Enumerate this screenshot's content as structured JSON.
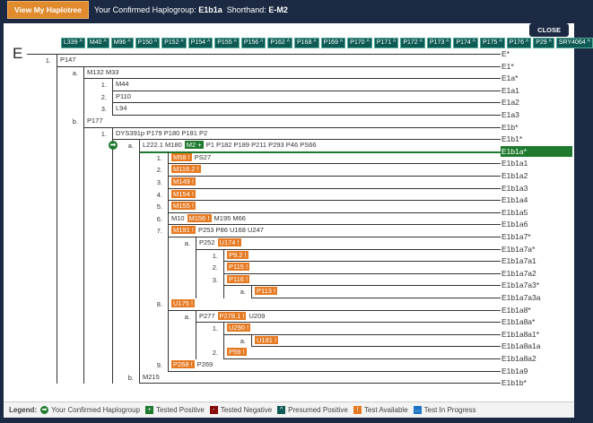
{
  "topbar": {
    "button": "View My Haplotree",
    "confirmed_prefix": "Your Confirmed Haplogroup:",
    "confirmed_value": "E1b1a",
    "shorthand_prefix": "Shorthand:",
    "shorthand_value": "E-M2"
  },
  "close": "CLOSE",
  "root": {
    "name": "E",
    "label": "E*",
    "markers": [
      "L339 ^",
      "M40 ^",
      "M96 ^",
      "P150 ^",
      "P152 ^",
      "P154 ^",
      "P155 ^",
      "P156 ^",
      "P162 ^",
      "P168 ^",
      "P169 ^",
      "P170 ^",
      "P171 ^",
      "P172 ^",
      "P173 ^",
      "P174 ^",
      "P175 ^",
      "P176 ^",
      "P29 ^",
      "SRY4064 ^"
    ]
  },
  "rows": [
    {
      "level": 0,
      "num": "1.",
      "label": "E1*",
      "markers": [
        {
          "t": "P147",
          "s": "plain"
        }
      ]
    },
    {
      "level": 1,
      "num": "a.",
      "label": "E1a*",
      "markers": [
        {
          "t": "M132 M33",
          "s": "plain"
        }
      ]
    },
    {
      "level": 2,
      "num": "1.",
      "label": "E1a1",
      "markers": [
        {
          "t": "M44",
          "s": "plain"
        }
      ]
    },
    {
      "level": 2,
      "num": "2.",
      "label": "E1a2",
      "markers": [
        {
          "t": "P110",
          "s": "plain"
        }
      ]
    },
    {
      "level": 2,
      "num": "3.",
      "label": "E1a3",
      "markers": [
        {
          "t": "L94",
          "s": "plain"
        }
      ]
    },
    {
      "level": 1,
      "num": "b.",
      "label": "E1b*",
      "markers": [
        {
          "t": "P177",
          "s": "plain"
        }
      ]
    },
    {
      "level": 2,
      "num": "1.",
      "label": "E1b1*",
      "markers": [
        {
          "t": "DYS391p P179 P180 P181 P2",
          "s": "plain"
        }
      ]
    },
    {
      "level": 3,
      "num": "a.",
      "label": "E1b1a*",
      "selected": true,
      "confirmed": true,
      "markers": [
        {
          "t": "L222.1 M180",
          "s": "plain"
        },
        {
          "t": "M2 +",
          "s": "pos"
        },
        {
          "t": "P1 P182 P189 P211 P293 P46 PS66",
          "s": "plain"
        }
      ]
    },
    {
      "level": 4,
      "num": "1.",
      "label": "E1b1a1",
      "markers": [
        {
          "t": "M58 !",
          "s": "avail"
        },
        {
          "t": "PS27",
          "s": "plain"
        }
      ]
    },
    {
      "level": 4,
      "num": "2.",
      "label": "E1b1a2",
      "markers": [
        {
          "t": "M116.2 !",
          "s": "avail"
        }
      ]
    },
    {
      "level": 4,
      "num": "3.",
      "label": "E1b1a3",
      "markers": [
        {
          "t": "M149 !",
          "s": "avail"
        }
      ]
    },
    {
      "level": 4,
      "num": "4.",
      "label": "E1b1a4",
      "markers": [
        {
          "t": "M154 !",
          "s": "avail"
        }
      ]
    },
    {
      "level": 4,
      "num": "5.",
      "label": "E1b1a5",
      "markers": [
        {
          "t": "M155 !",
          "s": "avail"
        }
      ]
    },
    {
      "level": 4,
      "num": "6.",
      "label": "E1b1a6",
      "markers": [
        {
          "t": "M10",
          "s": "plain"
        },
        {
          "t": "M156 !",
          "s": "avail"
        },
        {
          "t": "M195 M66",
          "s": "plain"
        }
      ]
    },
    {
      "level": 4,
      "num": "7.",
      "label": "E1b1a7*",
      "markers": [
        {
          "t": "M191 !",
          "s": "avail"
        },
        {
          "t": "P253 P86 U168 U247",
          "s": "plain"
        }
      ]
    },
    {
      "level": 5,
      "num": "a.",
      "label": "E1b1a7a*",
      "markers": [
        {
          "t": "P252",
          "s": "plain"
        },
        {
          "t": "U174 !",
          "s": "avail"
        }
      ]
    },
    {
      "level": 6,
      "num": "1.",
      "label": "E1b1a7a1",
      "markers": [
        {
          "t": "P9.2 !",
          "s": "avail"
        }
      ]
    },
    {
      "level": 6,
      "num": "2.",
      "label": "E1b1a7a2",
      "markers": [
        {
          "t": "P115 !",
          "s": "avail"
        }
      ]
    },
    {
      "level": 6,
      "num": "3.",
      "label": "E1b1a7a3*",
      "markers": [
        {
          "t": "P116 !",
          "s": "avail"
        }
      ]
    },
    {
      "level": 7,
      "num": "a.",
      "label": "E1b1a7a3a",
      "markers": [
        {
          "t": "P113 !",
          "s": "avail"
        }
      ]
    },
    {
      "level": 4,
      "num": "8.",
      "label": "E1b1a8*",
      "markers": [
        {
          "t": "U175 !",
          "s": "avail"
        }
      ]
    },
    {
      "level": 5,
      "num": "a.",
      "label": "E1b1a8a*",
      "markers": [
        {
          "t": "P277",
          "s": "plain"
        },
        {
          "t": "P278.1 !",
          "s": "avail"
        },
        {
          "t": "U209",
          "s": "plain"
        }
      ]
    },
    {
      "level": 6,
      "num": "1.",
      "label": "E1b1a8a1*",
      "markers": [
        {
          "t": "U290 !",
          "s": "avail"
        }
      ]
    },
    {
      "level": 7,
      "num": "a.",
      "label": "E1b1a8a1a",
      "markers": [
        {
          "t": "U181 !",
          "s": "avail"
        }
      ]
    },
    {
      "level": 6,
      "num": "2.",
      "label": "E1b1a8a2",
      "markers": [
        {
          "t": "P59 !",
          "s": "avail"
        }
      ]
    },
    {
      "level": 4,
      "num": "9.",
      "label": "E1b1a9",
      "markers": [
        {
          "t": "P268 !",
          "s": "avail"
        },
        {
          "t": "P269",
          "s": "plain"
        }
      ]
    },
    {
      "level": 3,
      "num": "b.",
      "label": "E1b1b*",
      "markers": [
        {
          "t": "M215",
          "s": "plain"
        }
      ]
    }
  ],
  "legend": {
    "title": "Legend:",
    "items": [
      {
        "text": "Your Confirmed Haplogroup",
        "icon": "confirmed-arrow-icon",
        "color": "#1e7a2e",
        "glyph": "➡"
      },
      {
        "text": "Tested Positive",
        "icon": "plus-icon",
        "color": "#1e7a2e",
        "glyph": "+"
      },
      {
        "text": "Tested Negative",
        "icon": "minus-icon",
        "color": "#8b0a0a",
        "glyph": "-"
      },
      {
        "text": "Presumed Positive",
        "icon": "caret-icon",
        "color": "#0e5a55",
        "glyph": "^"
      },
      {
        "text": "Test Available",
        "icon": "exclamation-icon",
        "color": "#e67a22",
        "glyph": "!"
      },
      {
        "text": "Test In Progress",
        "icon": "ellipsis-icon",
        "color": "#1e74c4",
        "glyph": "..."
      }
    ]
  }
}
